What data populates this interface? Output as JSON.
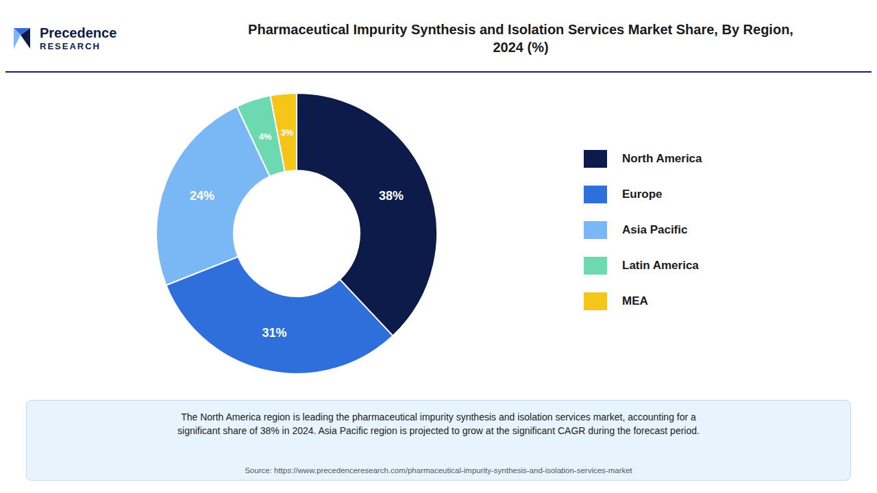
{
  "chart_data": {
    "type": "pie",
    "title": "Pharmaceutical Impurity Synthesis and Isolation Services Market Share, By Region,\n2024 (%)",
    "categories": [
      "North America",
      "Europe",
      "Asia Pacific",
      "Latin America",
      "MEA"
    ],
    "values": [
      38,
      31,
      24,
      4,
      3
    ],
    "value_labels": [
      "38%",
      "31%",
      "24%",
      "4%",
      "3%"
    ],
    "colors": [
      "#0d1b4b",
      "#2e6fdb",
      "#7ab8f5",
      "#6dd9b0",
      "#f5c518"
    ],
    "data_labels": true,
    "legend": "right",
    "annotations": [
      "The North America region is leading the pharmaceutical impurity synthesis and isolation services market, accounting for a\nsignificant share of 38% in 2024. Asia Pacific region is projected to grow at the significant CAGR during the forecast period.",
      "Source: https://www.precedenceresearch.com/pharmaceutical-impurity-synthesis-and-isolation-services-market",
      "Precedence",
      "RESEARCH"
    ]
  }
}
